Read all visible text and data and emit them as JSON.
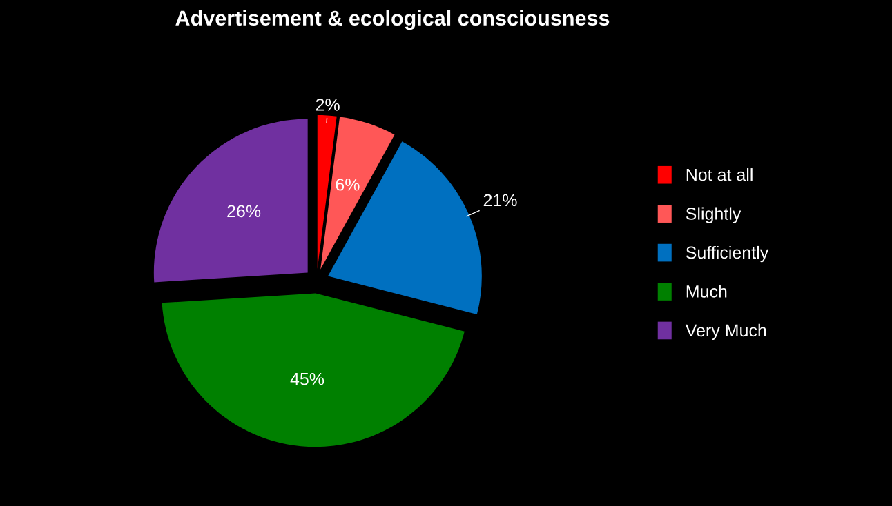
{
  "chart_data": {
    "type": "pie",
    "title": "Advertisement & ecological consciousness",
    "categories": [
      "Not at all",
      "Slightly",
      "Sufficiently",
      "Much",
      "Very Much"
    ],
    "values": [
      2,
      6,
      21,
      45,
      26
    ],
    "colors": [
      "#ff0000",
      "#ff5757",
      "#0070c0",
      "#008000",
      "#7030a0"
    ],
    "value_labels": [
      "2%",
      "6%",
      "21%",
      "45%",
      "26%"
    ],
    "legend": "right"
  }
}
